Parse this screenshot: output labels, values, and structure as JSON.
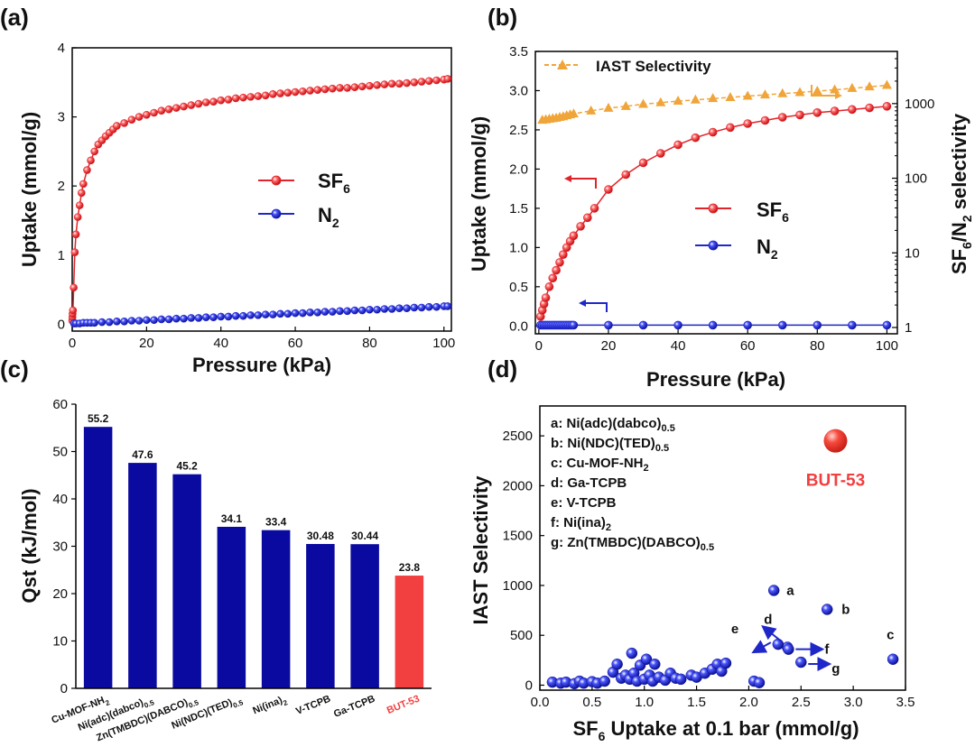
{
  "panel_labels": [
    "(a)",
    "(b)",
    "(c)",
    "(d)"
  ],
  "colors": {
    "sf6": "#e0242a",
    "n2": "#1f27c8",
    "iast": "#f0a53a",
    "bar": "#0a0aa0",
    "but53": "#f23f3f",
    "axis": "#000000"
  },
  "chart_data": [
    {
      "panel": "(a)",
      "type": "line",
      "xlabel": "Pressure (kPa)",
      "ylabel": "Uptake (mmol/g)",
      "xlim": [
        0,
        102
      ],
      "ylim": [
        -0.1,
        4
      ],
      "xticks": [
        0,
        20,
        40,
        60,
        80,
        100
      ],
      "yticks": [
        0,
        1,
        2,
        3,
        4
      ],
      "legend": {
        "position": "center-right"
      },
      "series": [
        {
          "name": "SF6",
          "label_main": "SF",
          "label_sub": "6",
          "x": [
            0,
            0.05,
            0.1,
            0.2,
            0.4,
            0.7,
            1,
            1.5,
            2,
            2.5,
            3,
            4,
            5,
            6,
            7,
            8,
            9,
            10,
            11,
            12,
            14,
            16,
            18,
            20,
            22,
            24,
            26,
            28,
            30,
            32,
            34,
            36,
            38,
            40,
            42,
            44,
            46,
            48,
            50,
            52,
            54,
            56,
            58,
            60,
            62,
            64,
            66,
            68,
            70,
            72,
            74,
            76,
            78,
            80,
            82,
            84,
            86,
            88,
            90,
            92,
            94,
            96,
            98,
            100,
            101
          ],
          "y": [
            0.05,
            0.1,
            0.15,
            0.2,
            0.53,
            1.04,
            1.3,
            1.55,
            1.72,
            1.9,
            2.03,
            2.23,
            2.37,
            2.5,
            2.6,
            2.66,
            2.72,
            2.77,
            2.82,
            2.87,
            2.91,
            2.96,
            3.0,
            3.03,
            3.06,
            3.09,
            3.11,
            3.13,
            3.15,
            3.17,
            3.19,
            3.21,
            3.22,
            3.24,
            3.25,
            3.27,
            3.28,
            3.29,
            3.3,
            3.31,
            3.33,
            3.34,
            3.35,
            3.36,
            3.37,
            3.38,
            3.39,
            3.4,
            3.41,
            3.42,
            3.42,
            3.43,
            3.44,
            3.45,
            3.46,
            3.47,
            3.48,
            3.48,
            3.49,
            3.5,
            3.51,
            3.52,
            3.53,
            3.54,
            3.55
          ]
        },
        {
          "name": "N2",
          "label_main": "N",
          "label_sub": "2",
          "x": [
            0.5,
            1,
            2,
            3,
            4,
            5,
            6,
            8,
            10,
            12,
            14,
            16,
            18,
            20,
            22,
            24,
            26,
            28,
            30,
            32,
            34,
            36,
            38,
            40,
            42,
            44,
            46,
            48,
            50,
            52,
            54,
            56,
            58,
            60,
            62,
            64,
            66,
            68,
            70,
            72,
            74,
            76,
            78,
            80,
            82,
            84,
            86,
            88,
            90,
            92,
            94,
            96,
            98,
            100,
            101
          ],
          "y": [
            0.01,
            0.01,
            0.01,
            0.02,
            0.02,
            0.02,
            0.02,
            0.03,
            0.03,
            0.04,
            0.04,
            0.05,
            0.05,
            0.06,
            0.06,
            0.07,
            0.07,
            0.08,
            0.08,
            0.09,
            0.09,
            0.1,
            0.1,
            0.11,
            0.11,
            0.12,
            0.12,
            0.13,
            0.13,
            0.14,
            0.14,
            0.15,
            0.15,
            0.16,
            0.16,
            0.17,
            0.17,
            0.18,
            0.18,
            0.19,
            0.19,
            0.2,
            0.2,
            0.21,
            0.21,
            0.22,
            0.22,
            0.23,
            0.23,
            0.24,
            0.24,
            0.25,
            0.25,
            0.26,
            0.26
          ]
        }
      ]
    },
    {
      "panel": "(b)",
      "type": "line",
      "xlabel": "Pressure (kPa)",
      "ylabel": "Uptake (mmol/g)",
      "y2label_parts": [
        "SF",
        "6",
        "/N",
        "2",
        " selectivity"
      ],
      "xlim": [
        -1,
        103
      ],
      "ylim": [
        -0.1,
        3.5
      ],
      "y2lim_log": [
        1,
        5000
      ],
      "xticks": [
        0,
        20,
        40,
        60,
        80,
        100
      ],
      "yticks": [
        0.0,
        0.5,
        1.0,
        1.5,
        2.0,
        2.5,
        3.0,
        3.5
      ],
      "ytick_labels": [
        "0.0",
        "0.5",
        "1.0",
        "1.5",
        "2.0",
        "2.5",
        "3.0",
        "3.5"
      ],
      "y2ticks": [
        1,
        10,
        100,
        1000
      ],
      "legend": {
        "position": "center-right"
      },
      "series": [
        {
          "name": "IAST Selectivity",
          "axis": "right",
          "x": [
            1,
            2,
            3,
            4,
            5,
            6,
            7,
            8,
            9,
            10,
            15,
            20,
            25,
            30,
            35,
            40,
            45,
            50,
            55,
            60,
            65,
            70,
            75,
            80,
            85,
            90,
            95,
            100
          ],
          "y": [
            600,
            610,
            620,
            630,
            640,
            655,
            670,
            690,
            710,
            730,
            800,
            870,
            920,
            980,
            1030,
            1080,
            1120,
            1170,
            1210,
            1260,
            1310,
            1360,
            1410,
            1470,
            1530,
            1600,
            1680,
            1760
          ]
        },
        {
          "name": "SF6",
          "label_main": "SF",
          "label_sub": "6",
          "axis": "left",
          "x": [
            0.5,
            1,
            1.5,
            2,
            3,
            4,
            5,
            6,
            7,
            8,
            9,
            10,
            12,
            14,
            16,
            20,
            25,
            30,
            35,
            40,
            45,
            50,
            55,
            60,
            65,
            70,
            75,
            80,
            85,
            90,
            95,
            100
          ],
          "y": [
            0.12,
            0.2,
            0.28,
            0.36,
            0.5,
            0.61,
            0.71,
            0.81,
            0.91,
            1.0,
            1.08,
            1.15,
            1.27,
            1.38,
            1.5,
            1.74,
            1.93,
            2.08,
            2.2,
            2.31,
            2.4,
            2.47,
            2.53,
            2.58,
            2.62,
            2.66,
            2.69,
            2.72,
            2.74,
            2.76,
            2.78,
            2.8
          ]
        },
        {
          "name": "N2",
          "label_main": "N",
          "label_sub": "2",
          "axis": "left",
          "x": [
            0.5,
            1,
            1.5,
            2,
            2.5,
            3,
            3.5,
            4,
            4.5,
            5,
            5.5,
            6,
            6.5,
            7,
            7.5,
            8,
            8.5,
            9,
            9.5,
            10,
            20,
            30,
            40,
            50,
            60,
            70,
            80,
            90,
            100
          ],
          "y": [
            0.01,
            0.01,
            0.01,
            0.01,
            0.01,
            0.01,
            0.01,
            0.01,
            0.01,
            0.01,
            0.01,
            0.01,
            0.01,
            0.01,
            0.01,
            0.01,
            0.01,
            0.01,
            0.01,
            0.01,
            0.01,
            0.01,
            0.01,
            0.01,
            0.01,
            0.01,
            0.01,
            0.01,
            0.01
          ]
        }
      ]
    },
    {
      "panel": "(c)",
      "type": "bar",
      "ylabel": "Qst  (kJ/mol)",
      "ylim": [
        0,
        60
      ],
      "yticks": [
        0,
        10,
        20,
        30,
        40,
        50,
        60
      ],
      "categories": [
        {
          "main": "Cu-MOF-NH",
          "sub": "2"
        },
        {
          "main": "Ni(adc)(dabco)",
          "sub": "0.5"
        },
        {
          "main": "Zn(TMBDC)(DABCO)",
          "sub": "0.5"
        },
        {
          "main": "Ni(NDC)(TED)",
          "sub": "0.5"
        },
        {
          "main": "Ni(ina)",
          "sub": "2"
        },
        {
          "main": "V-TCPB",
          "sub": ""
        },
        {
          "main": "Ga-TCPB",
          "sub": ""
        },
        {
          "main": "BUT-53",
          "sub": ""
        }
      ],
      "values": [
        55.2,
        47.6,
        45.2,
        34.1,
        33.4,
        30.48,
        30.44,
        23.8
      ],
      "value_labels": [
        "55.2",
        "47.6",
        "45.2",
        "34.1",
        "33.4",
        "30.48",
        "30.44",
        "23.8"
      ],
      "highlight_index": 7
    },
    {
      "panel": "(d)",
      "type": "scatter",
      "xlabel_parts": [
        "SF",
        "6",
        " Uptake at 0.1 bar (mmol/g)"
      ],
      "ylabel": "IAST Selectivity",
      "xlim": [
        0,
        3.5
      ],
      "ylim": [
        -50,
        2800
      ],
      "xticks": [
        0.0,
        0.5,
        1.0,
        1.5,
        2.0,
        2.5,
        3.0,
        3.5
      ],
      "xtick_labels": [
        "0.0",
        "0.5",
        "1.0",
        "1.5",
        "2.0",
        "2.5",
        "3.0",
        "3.5"
      ],
      "yticks": [
        0,
        500,
        1000,
        1500,
        2000,
        2500
      ],
      "legend_lines": [
        {
          "main": "a: Ni(adc)(dabco)",
          "sub": "0.5"
        },
        {
          "main": "b: Ni(NDC)(TED)",
          "sub": "0.5"
        },
        {
          "main": "c: Cu-MOF-NH",
          "sub": "2"
        },
        {
          "main": "d: Ga-TCPB",
          "sub": ""
        },
        {
          "main": "e: V-TCPB",
          "sub": ""
        },
        {
          "main": "f: Ni(ina)",
          "sub": "2"
        },
        {
          "main": "g: Zn(TMBDC)(DABCO)",
          "sub": "0.5"
        }
      ],
      "highlight": {
        "label": "BUT-53",
        "x": 2.83,
        "y": 2450
      },
      "labeled_points": [
        {
          "label": "a",
          "x": 2.24,
          "y": 950
        },
        {
          "label": "b",
          "x": 2.75,
          "y": 760
        },
        {
          "label": "c",
          "x": 3.38,
          "y": 260
        },
        {
          "label": "d",
          "x": 2.37,
          "y": 380
        },
        {
          "label": "e",
          "x": 2.28,
          "y": 410
        },
        {
          "label": "f",
          "x": 2.38,
          "y": 360
        },
        {
          "label": "g",
          "x": 2.5,
          "y": 230
        }
      ],
      "points": [
        {
          "x": 0.12,
          "y": 30
        },
        {
          "x": 0.2,
          "y": 20
        },
        {
          "x": 0.25,
          "y": 30
        },
        {
          "x": 0.33,
          "y": 15
        },
        {
          "x": 0.38,
          "y": 40
        },
        {
          "x": 0.42,
          "y": 20
        },
        {
          "x": 0.5,
          "y": 35
        },
        {
          "x": 0.55,
          "y": 20
        },
        {
          "x": 0.62,
          "y": 40
        },
        {
          "x": 0.7,
          "y": 130
        },
        {
          "x": 0.74,
          "y": 210
        },
        {
          "x": 0.78,
          "y": 70
        },
        {
          "x": 0.82,
          "y": 100
        },
        {
          "x": 0.86,
          "y": 60
        },
        {
          "x": 0.88,
          "y": 320
        },
        {
          "x": 0.9,
          "y": 120
        },
        {
          "x": 0.93,
          "y": 40
        },
        {
          "x": 0.96,
          "y": 200
        },
        {
          "x": 1.0,
          "y": 60
        },
        {
          "x": 1.02,
          "y": 260
        },
        {
          "x": 1.05,
          "y": 100
        },
        {
          "x": 1.08,
          "y": 40
        },
        {
          "x": 1.1,
          "y": 210
        },
        {
          "x": 1.14,
          "y": 80
        },
        {
          "x": 1.2,
          "y": 50
        },
        {
          "x": 1.25,
          "y": 120
        },
        {
          "x": 1.3,
          "y": 70
        },
        {
          "x": 1.35,
          "y": 60
        },
        {
          "x": 1.45,
          "y": 100
        },
        {
          "x": 1.5,
          "y": 80
        },
        {
          "x": 1.58,
          "y": 120
        },
        {
          "x": 1.65,
          "y": 160
        },
        {
          "x": 1.7,
          "y": 210
        },
        {
          "x": 1.74,
          "y": 140
        },
        {
          "x": 1.78,
          "y": 220
        },
        {
          "x": 2.05,
          "y": 40
        },
        {
          "x": 2.1,
          "y": 25
        }
      ]
    }
  ]
}
